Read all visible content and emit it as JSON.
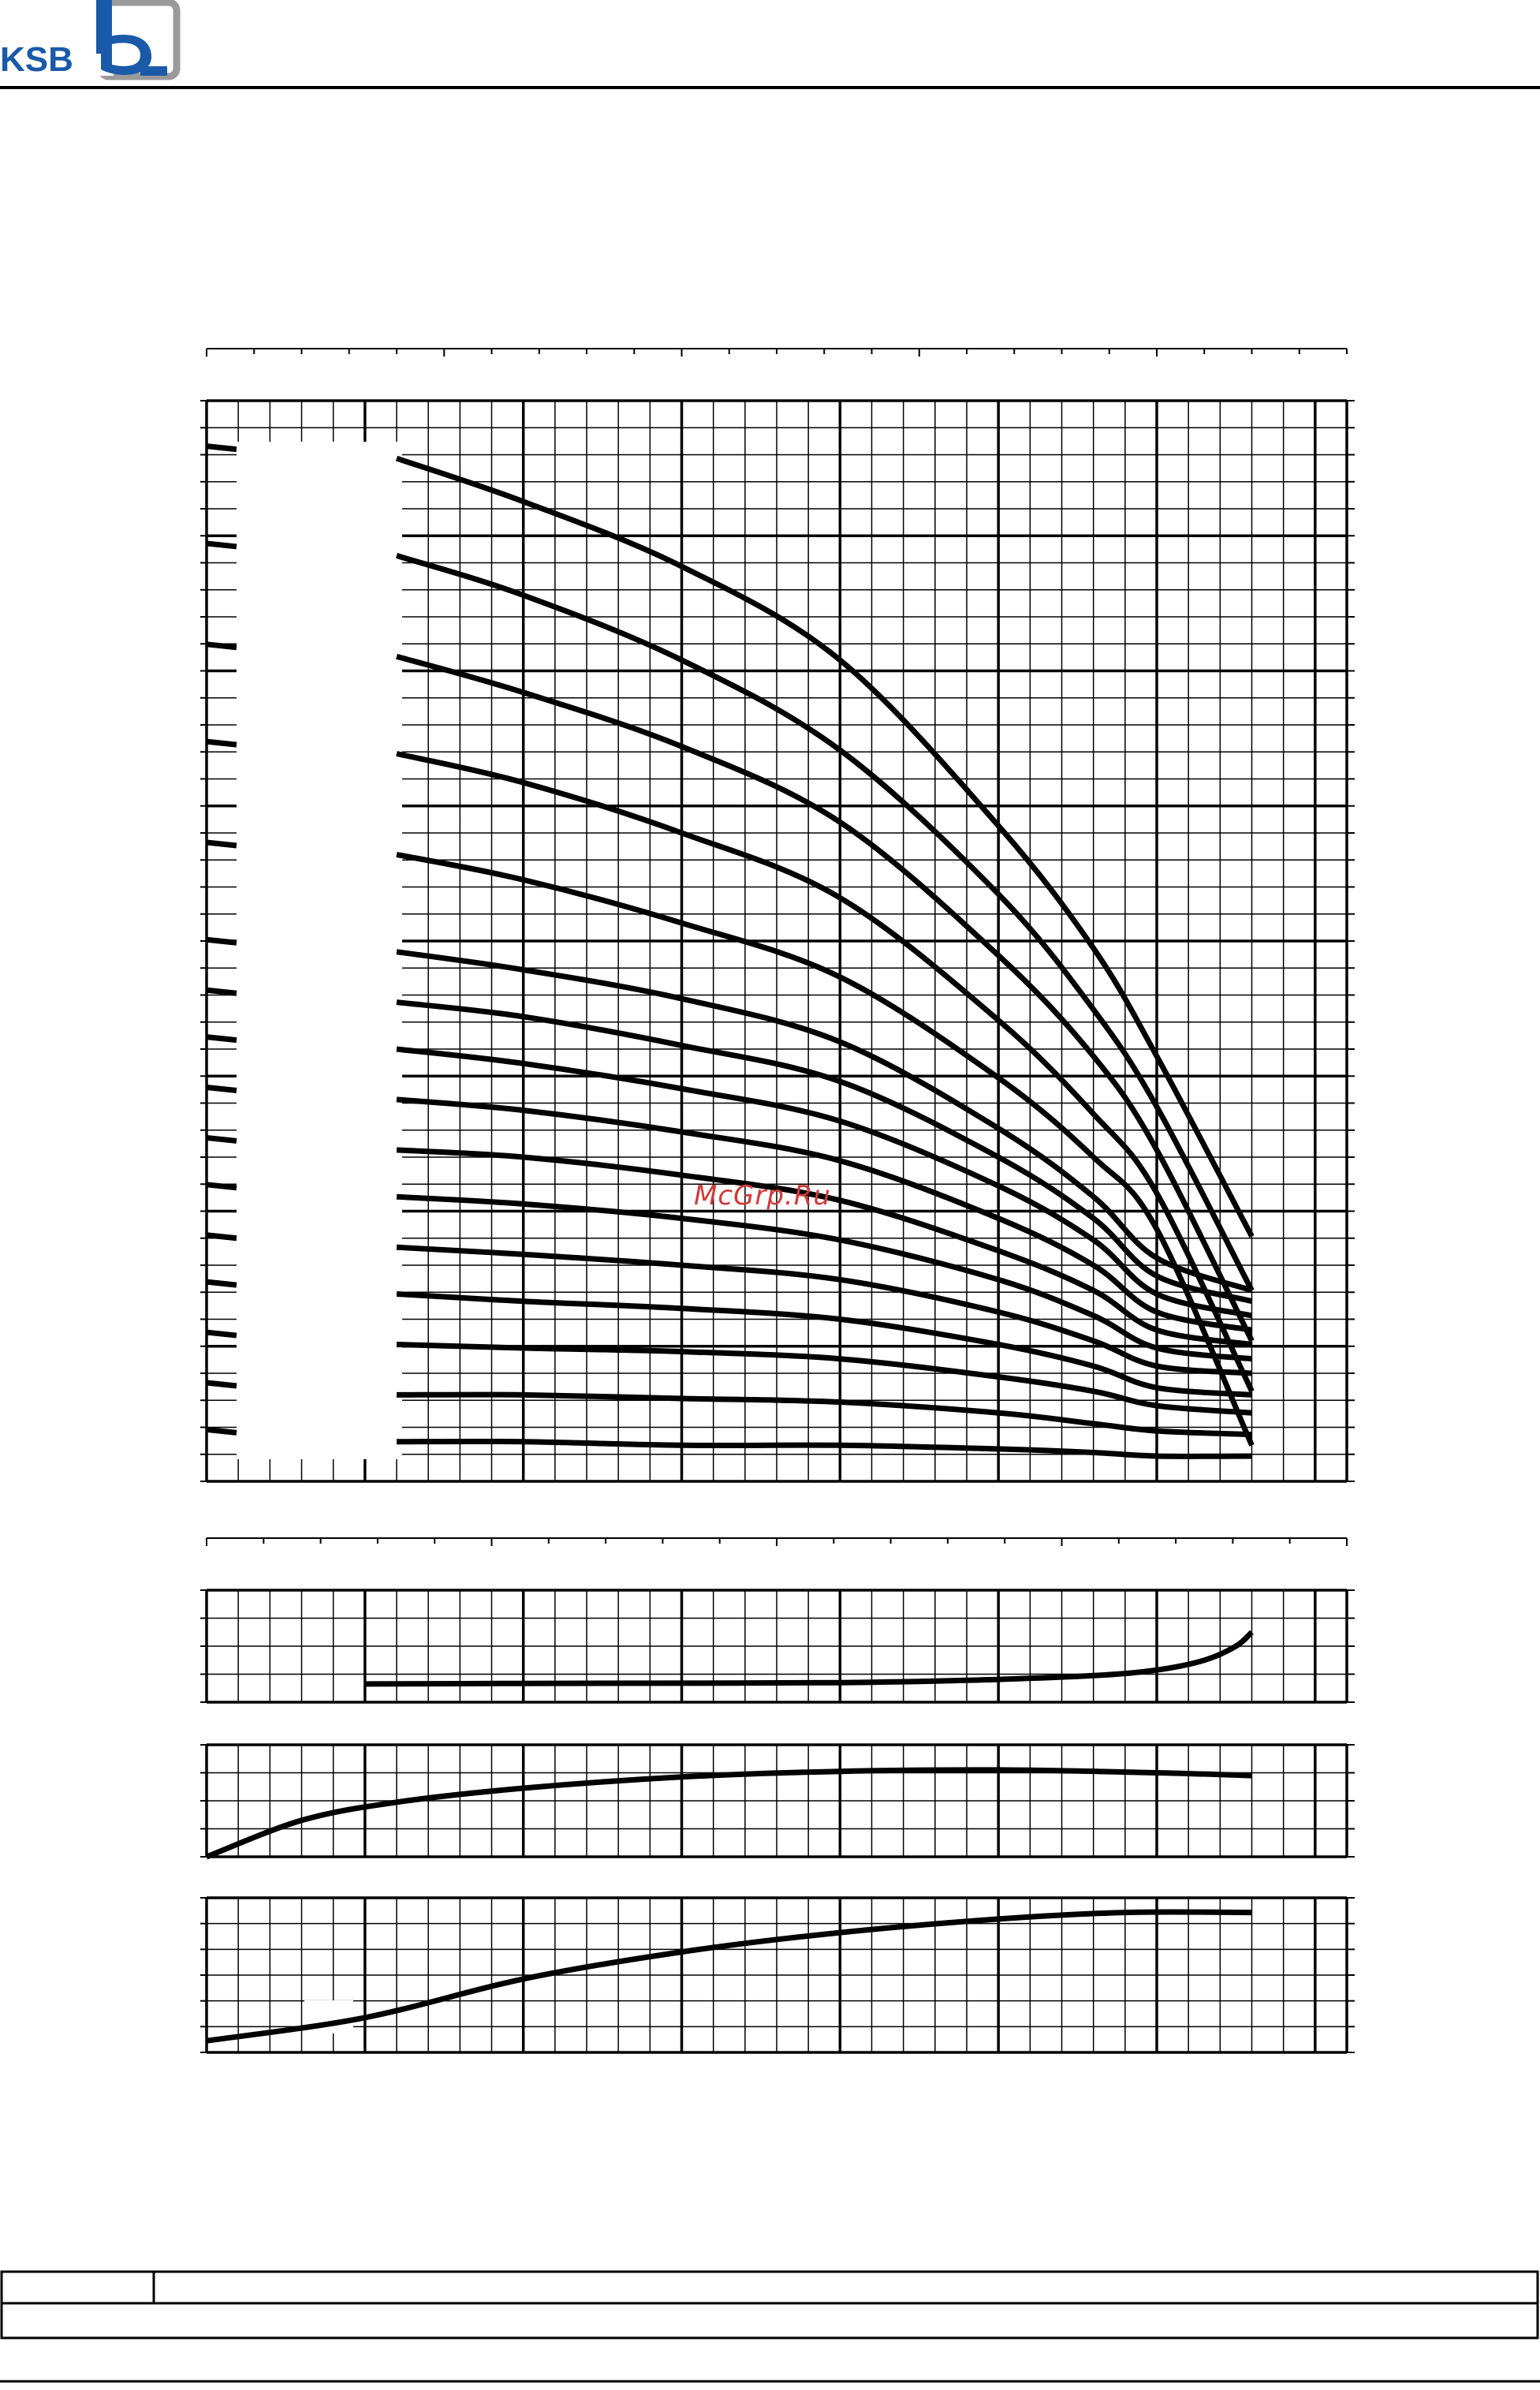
{
  "header": {
    "brand_text": "KSB",
    "brand_color": "#1a5aa8",
    "logo_frame_color": "#9a9a9a"
  },
  "watermark": {
    "text": "McGrp.Ru",
    "color": "#d23a3a"
  },
  "chart_data": [
    {
      "type": "line",
      "panel": "head",
      "grid": true,
      "xlim": [
        0,
        36
      ],
      "ylim": [
        0,
        30
      ],
      "series": [
        {
          "x": [
            6,
            10,
            15,
            20,
            25,
            28,
            30,
            33
          ],
          "values": [
            28.4,
            27.2,
            25.4,
            22.8,
            18.2,
            14.8,
            11.8,
            6.8
          ]
        },
        {
          "x": [
            6,
            10,
            15,
            20,
            25,
            28,
            30,
            33
          ],
          "values": [
            25.7,
            24.6,
            22.8,
            20.3,
            16.3,
            13.1,
            10.4,
            5.3
          ]
        },
        {
          "x": [
            6,
            10,
            15,
            20,
            25,
            28,
            30,
            33
          ],
          "values": [
            22.9,
            21.9,
            20.4,
            18.3,
            14.6,
            11.8,
            9.2,
            3.9
          ]
        },
        {
          "x": [
            6,
            10,
            15,
            20,
            25,
            28,
            30,
            33
          ],
          "values": [
            20.2,
            19.4,
            18.0,
            16.2,
            12.8,
            10.2,
            8.0,
            2.5
          ]
        },
        {
          "x": [
            6,
            10,
            15,
            20,
            25,
            28,
            30,
            33
          ],
          "values": [
            17.4,
            16.7,
            15.5,
            14.0,
            11.2,
            9.0,
            7.0,
            1.0
          ]
        },
        {
          "x": [
            6,
            10,
            15,
            20,
            25,
            28,
            30,
            33
          ],
          "values": [
            14.7,
            14.2,
            13.4,
            12.2,
            9.8,
            7.9,
            6.2,
            5.3
          ]
        },
        {
          "x": [
            6,
            10,
            15,
            20,
            25,
            28,
            30,
            33
          ],
          "values": [
            13.3,
            12.9,
            12.1,
            11.1,
            9.0,
            7.3,
            5.7,
            5.0
          ]
        },
        {
          "x": [
            6,
            10,
            15,
            20,
            25,
            28,
            30,
            33
          ],
          "values": [
            12.0,
            11.6,
            10.9,
            10.0,
            8.2,
            6.7,
            5.2,
            4.6
          ]
        },
        {
          "x": [
            6,
            10,
            15,
            20,
            25,
            28,
            30,
            33
          ],
          "values": [
            10.6,
            10.3,
            9.7,
            8.9,
            7.3,
            6.0,
            4.7,
            4.2
          ]
        },
        {
          "x": [
            6,
            10,
            15,
            20,
            25,
            28,
            30,
            33
          ],
          "values": [
            9.2,
            9.0,
            8.5,
            7.8,
            6.4,
            5.3,
            4.2,
            3.8
          ]
        },
        {
          "x": [
            6,
            10,
            15,
            20,
            25,
            28,
            30,
            33
          ],
          "values": [
            7.9,
            7.7,
            7.3,
            6.7,
            5.6,
            4.6,
            3.7,
            3.4
          ]
        },
        {
          "x": [
            6,
            10,
            15,
            20,
            25,
            28,
            30,
            33
          ],
          "values": [
            6.5,
            6.3,
            6.0,
            5.6,
            4.7,
            3.9,
            3.2,
            3.0
          ]
        },
        {
          "x": [
            6,
            10,
            15,
            20,
            25,
            28,
            30,
            33
          ],
          "values": [
            5.2,
            5.0,
            4.8,
            4.5,
            3.8,
            3.2,
            2.6,
            2.4
          ]
        },
        {
          "x": [
            6,
            10,
            15,
            20,
            25,
            28,
            30,
            33
          ],
          "values": [
            3.8,
            3.7,
            3.6,
            3.4,
            2.9,
            2.5,
            2.1,
            1.9
          ]
        },
        {
          "x": [
            6,
            10,
            15,
            20,
            25,
            28,
            30,
            33
          ],
          "values": [
            2.4,
            2.4,
            2.3,
            2.2,
            1.9,
            1.6,
            1.4,
            1.3
          ]
        },
        {
          "x": [
            6,
            10,
            15,
            20,
            25,
            28,
            30,
            33
          ],
          "values": [
            1.1,
            1.1,
            1.0,
            1.0,
            0.9,
            0.8,
            0.7,
            0.7
          ]
        }
      ]
    },
    {
      "type": "line",
      "panel": "npsh",
      "grid": true,
      "xlim": [
        0,
        36
      ],
      "ylim": [
        0,
        4
      ],
      "series": [
        {
          "x": [
            5,
            10,
            15,
            20,
            24,
            28,
            30,
            31.5,
            32.5,
            33
          ],
          "values": [
            0.65,
            0.67,
            0.68,
            0.7,
            0.78,
            0.95,
            1.15,
            1.5,
            2.0,
            2.5
          ]
        }
      ]
    },
    {
      "type": "line",
      "panel": "efficiency",
      "grid": true,
      "xlim": [
        0,
        36
      ],
      "ylim": [
        0,
        4
      ],
      "series": [
        {
          "x": [
            0,
            3,
            6,
            10,
            15,
            20,
            25,
            30,
            33
          ],
          "values": [
            0.0,
            1.3,
            1.95,
            2.45,
            2.85,
            3.05,
            3.1,
            3.0,
            2.9
          ]
        }
      ]
    },
    {
      "type": "line",
      "panel": "power",
      "grid": true,
      "xlim": [
        0,
        36
      ],
      "ylim": [
        0,
        4
      ],
      "series": [
        {
          "x": [
            0,
            5,
            10,
            15,
            20,
            25,
            29,
            33
          ],
          "values": [
            0.3,
            0.9,
            1.9,
            2.6,
            3.1,
            3.45,
            3.62,
            3.62
          ]
        }
      ]
    }
  ]
}
